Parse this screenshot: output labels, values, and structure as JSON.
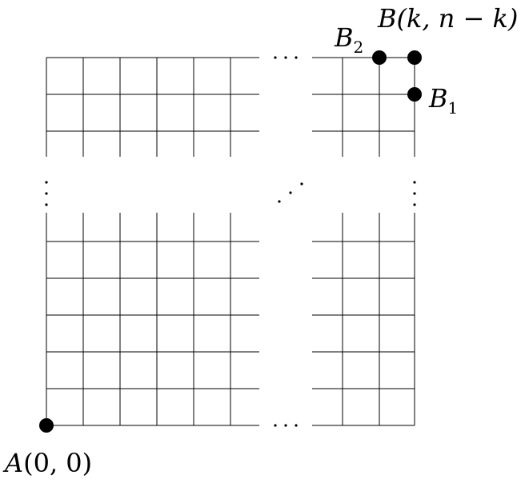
{
  "diagram": {
    "labels": {
      "A": {
        "name": "A",
        "coords": "(0, 0)"
      },
      "B": {
        "name": "B",
        "coords": "(k, n − k)"
      },
      "B1": {
        "name": "B",
        "subscript": "1"
      },
      "B2": {
        "name": "B",
        "subscript": "2"
      }
    },
    "ellipsis_horizontal": "· · ·",
    "colors": {
      "lines": "#000000",
      "points": "#000000",
      "background": "#ffffff"
    }
  }
}
